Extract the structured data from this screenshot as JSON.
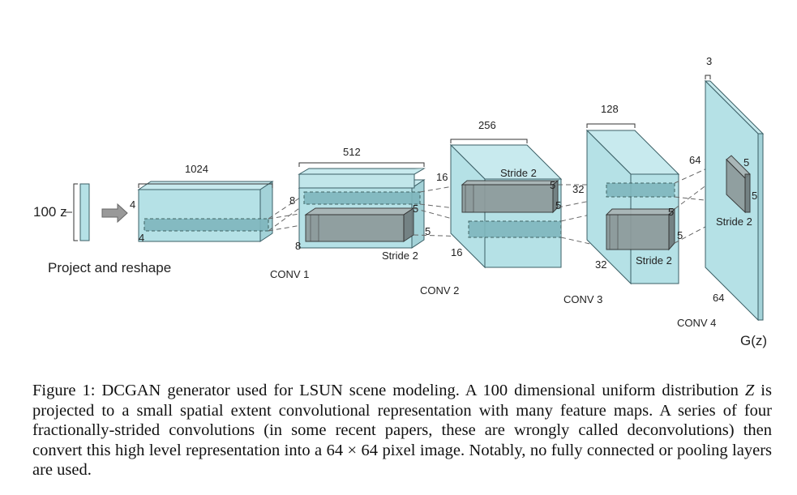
{
  "input": {
    "label": "100 z",
    "caption": "Project and reshape"
  },
  "project": {
    "width": "1024",
    "h": "4",
    "w": "4"
  },
  "conv1": {
    "name": "CONV 1",
    "channels": "512",
    "h": "8",
    "w": "8",
    "kernel": "5",
    "stride": "Stride 2"
  },
  "conv2": {
    "name": "CONV 2",
    "channels": "256",
    "h": "16",
    "w": "16",
    "kernel_top": "5",
    "kernel_side": "5",
    "stride": "Stride 2"
  },
  "conv3": {
    "name": "CONV 3",
    "channels": "128",
    "h": "32",
    "w": "32",
    "kernel_top": "5",
    "kernel_side": "5",
    "stride": "Stride 2"
  },
  "conv4": {
    "name": "CONV 4",
    "channels": "3",
    "h": "64",
    "w": "64",
    "kernel_top": "5",
    "kernel_side": "5",
    "stride": "Stride 2"
  },
  "output": {
    "label": "G(z)"
  },
  "caption": {
    "prefix": "Figure 1: DCGAN generator used for LSUN scene modeling. A 100 dimensional uniform distribution ",
    "var": "Z",
    "middle": " is projected to a small spatial extent convolutional representation with many feature maps. A series of four fractionally-strided convolutions (in some recent papers, these are wrongly called deconvolutions) then convert this high level representation into a ",
    "math": "64 × 64",
    "suffix": " pixel image. Notably, no fully connected or pooling layers are used."
  },
  "colors": {
    "block_fill": "#b5e1e6",
    "block_stroke": "#3b5f66",
    "kernel_fill": "#8a9697",
    "dash": "#666666"
  }
}
